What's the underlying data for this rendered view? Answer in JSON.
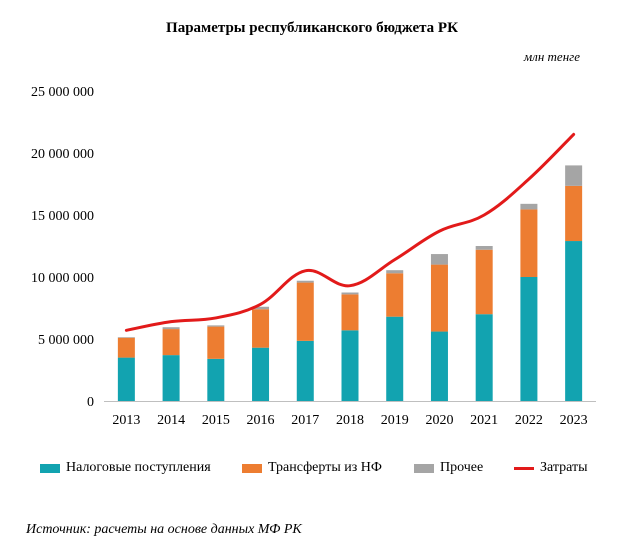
{
  "chart_data": {
    "type": "bar",
    "title": "Параметры республиканского бюджета РК",
    "unit": "млн тенге",
    "categories": [
      "2013",
      "2014",
      "2015",
      "2016",
      "2017",
      "2018",
      "2019",
      "2020",
      "2021",
      "2022",
      "2023"
    ],
    "series": [
      {
        "name": "Налоговые поступления",
        "type": "bar",
        "stack": "income",
        "color": "#12A3B0",
        "values": [
          3500000,
          3700000,
          3400000,
          4300000,
          4850000,
          5700000,
          6800000,
          5600000,
          7000000,
          10000000,
          12900000
        ]
      },
      {
        "name": "Трансферты из НФ",
        "type": "bar",
        "stack": "income",
        "color": "#ED7D31",
        "values": [
          1600000,
          2100000,
          2600000,
          3100000,
          4700000,
          2900000,
          3500000,
          5400000,
          5200000,
          5450000,
          4450000
        ]
      },
      {
        "name": "Прочее",
        "type": "bar",
        "stack": "income",
        "color": "#A5A5A5",
        "values": [
          50000,
          150000,
          100000,
          200000,
          150000,
          150000,
          250000,
          850000,
          300000,
          450000,
          1650000
        ]
      },
      {
        "name": "Затраты",
        "type": "line",
        "color": "#E21A1A",
        "values": [
          5700000,
          6400000,
          6700000,
          7800000,
          10500000,
          9300000,
          11400000,
          13700000,
          15000000,
          17900000,
          21500000
        ]
      }
    ],
    "ylim": [
      0,
      25000000
    ],
    "yticks": [
      0,
      5000000,
      10000000,
      15000000,
      20000000,
      25000000
    ],
    "ytick_labels": [
      "0",
      "5 000 000",
      "10 000 000",
      "15 000 000",
      "20 000 000",
      "25 000 000"
    ],
    "grid": false,
    "legend_position": "bottom"
  },
  "source": "Источник: расчеты на основе данных МФ РК"
}
